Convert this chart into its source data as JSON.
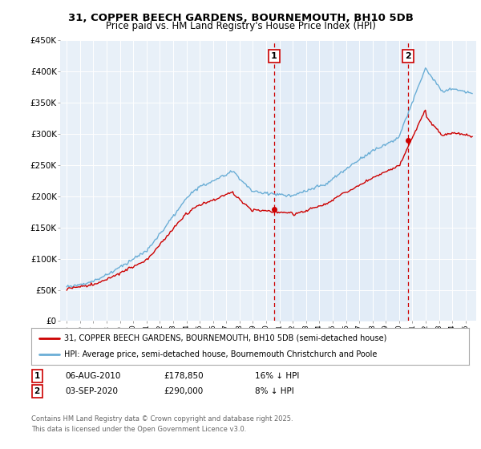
{
  "title_line1": "31, COPPER BEECH GARDENS, BOURNEMOUTH, BH10 5DB",
  "title_line2": "Price paid vs. HM Land Registry's House Price Index (HPI)",
  "ylabel_ticks": [
    "£0",
    "£50K",
    "£100K",
    "£150K",
    "£200K",
    "£250K",
    "£300K",
    "£350K",
    "£400K",
    "£450K"
  ],
  "ytick_values": [
    0,
    50000,
    100000,
    150000,
    200000,
    250000,
    300000,
    350000,
    400000,
    450000
  ],
  "ylim": [
    0,
    450000
  ],
  "sale1_date": "06-AUG-2010",
  "sale1_price": 178850,
  "sale1_price_str": "£178,850",
  "sale1_hpi_note": "16% ↓ HPI",
  "sale2_date": "03-SEP-2020",
  "sale2_price": 290000,
  "sale2_price_str": "£290,000",
  "sale2_hpi_note": "8% ↓ HPI",
  "sale1_x": 2010.6,
  "sale2_x": 2020.67,
  "legend_line1": "31, COPPER BEECH GARDENS, BOURNEMOUTH, BH10 5DB (semi-detached house)",
  "legend_line2": "HPI: Average price, semi-detached house, Bournemouth Christchurch and Poole",
  "footer": "Contains HM Land Registry data © Crown copyright and database right 2025.\nThis data is licensed under the Open Government Licence v3.0.",
  "hpi_color": "#6baed6",
  "hpi_fill_color": "#ddeaf7",
  "sale_color": "#cc0000",
  "bg_color": "#e8f0f8",
  "plot_bg": "#ffffff",
  "dashed_color": "#cc0000",
  "xlim_start": 1994.5,
  "xlim_end": 2025.8
}
